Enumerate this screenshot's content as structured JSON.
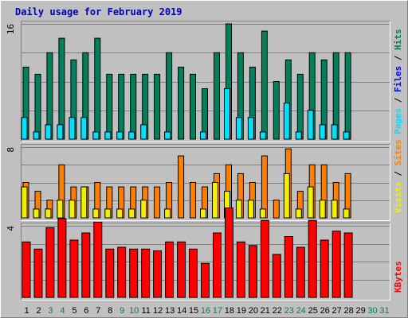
{
  "chart_data": {
    "type": "bar",
    "title": "Daily usage for February 2019",
    "x": [
      "1",
      "2",
      "3",
      "4",
      "5",
      "6",
      "7",
      "8",
      "9",
      "10",
      "11",
      "12",
      "13",
      "14",
      "15",
      "16",
      "17",
      "18",
      "19",
      "20",
      "21",
      "22",
      "23",
      "24",
      "25",
      "26",
      "27",
      "28",
      "29",
      "30",
      "31"
    ],
    "x_weekend": [
      false,
      false,
      true,
      true,
      false,
      false,
      false,
      false,
      true,
      true,
      false,
      false,
      false,
      false,
      false,
      true,
      true,
      false,
      false,
      false,
      false,
      false,
      true,
      true,
      false,
      false,
      false,
      false,
      false,
      true,
      true
    ],
    "panels": [
      {
        "name": "hits-files-pages",
        "ymax": 16,
        "ytick_label": "16",
        "legend": [
          {
            "text": "Pages",
            "color": "#00e0ff"
          },
          {
            "text": " / ",
            "color": "#000000"
          },
          {
            "text": "Files",
            "color": "#0000ff"
          },
          {
            "text": " / ",
            "color": "#000000"
          },
          {
            "text": "Hits",
            "color": "#00805c"
          }
        ],
        "series": [
          {
            "name": "Hits",
            "color": "#00805c",
            "values": [
              10,
              9,
              12,
              14,
              11,
              12,
              14,
              9,
              9,
              9,
              9,
              9,
              12,
              10,
              9,
              7,
              12,
              16,
              12,
              10,
              15,
              8,
              11,
              9,
              12,
              11,
              12,
              12,
              0,
              0,
              0
            ]
          },
          {
            "name": "Pages",
            "color": "#00e0ff",
            "values": [
              3,
              1,
              2,
              2,
              3,
              3,
              1,
              1,
              1,
              1,
              2,
              0,
              1,
              0,
              0,
              1,
              0,
              7,
              3,
              3,
              1,
              0,
              5,
              1,
              4,
              2,
              2,
              1,
              0,
              0,
              0
            ]
          }
        ]
      },
      {
        "name": "visits-sites",
        "ymax": 8,
        "ytick_label": "8",
        "legend": [
          {
            "text": "Visits",
            "color": "#f0f000"
          },
          {
            "text": " / ",
            "color": "#000000"
          },
          {
            "text": "Sites",
            "color": "#ff8000"
          }
        ],
        "series": [
          {
            "name": "Sites",
            "color": "#ff8000",
            "values": [
              4,
              3,
              2,
              6,
              3.5,
              3.5,
              4,
              3.5,
              3.5,
              3.5,
              3.5,
              3.5,
              4,
              7,
              4,
              3.5,
              5,
              6,
              5,
              4,
              7,
              2,
              7.8,
              3,
              6,
              6,
              4,
              5,
              0,
              0,
              0
            ]
          },
          {
            "name": "Visits",
            "color": "#f0f000",
            "values": [
              3.5,
              1,
              1,
              2,
              2,
              3.5,
              1,
              1,
              1,
              1,
              2,
              0,
              1,
              0,
              0,
              1,
              4,
              3,
              2,
              2,
              1,
              0,
              5,
              1,
              3.5,
              2,
              2,
              1,
              0,
              0,
              0
            ]
          }
        ]
      },
      {
        "name": "kbytes",
        "ymax": 4,
        "ytick_label": "4",
        "legend": [
          {
            "text": "KBytes",
            "color": "#ff0000"
          }
        ],
        "series": [
          {
            "name": "KBytes",
            "color": "#ff0000",
            "values": [
              3.1,
              2.7,
              3.9,
              4.4,
              3.2,
              3.6,
              4.2,
              2.7,
              2.8,
              2.7,
              2.7,
              2.6,
              3.1,
              3.1,
              2.7,
              1.9,
              3.6,
              5.0,
              3.1,
              2.9,
              4.3,
              2.4,
              3.4,
              2.8,
              4.3,
              3.2,
              3.7,
              3.6,
              0,
              0,
              0
            ]
          }
        ]
      }
    ]
  }
}
